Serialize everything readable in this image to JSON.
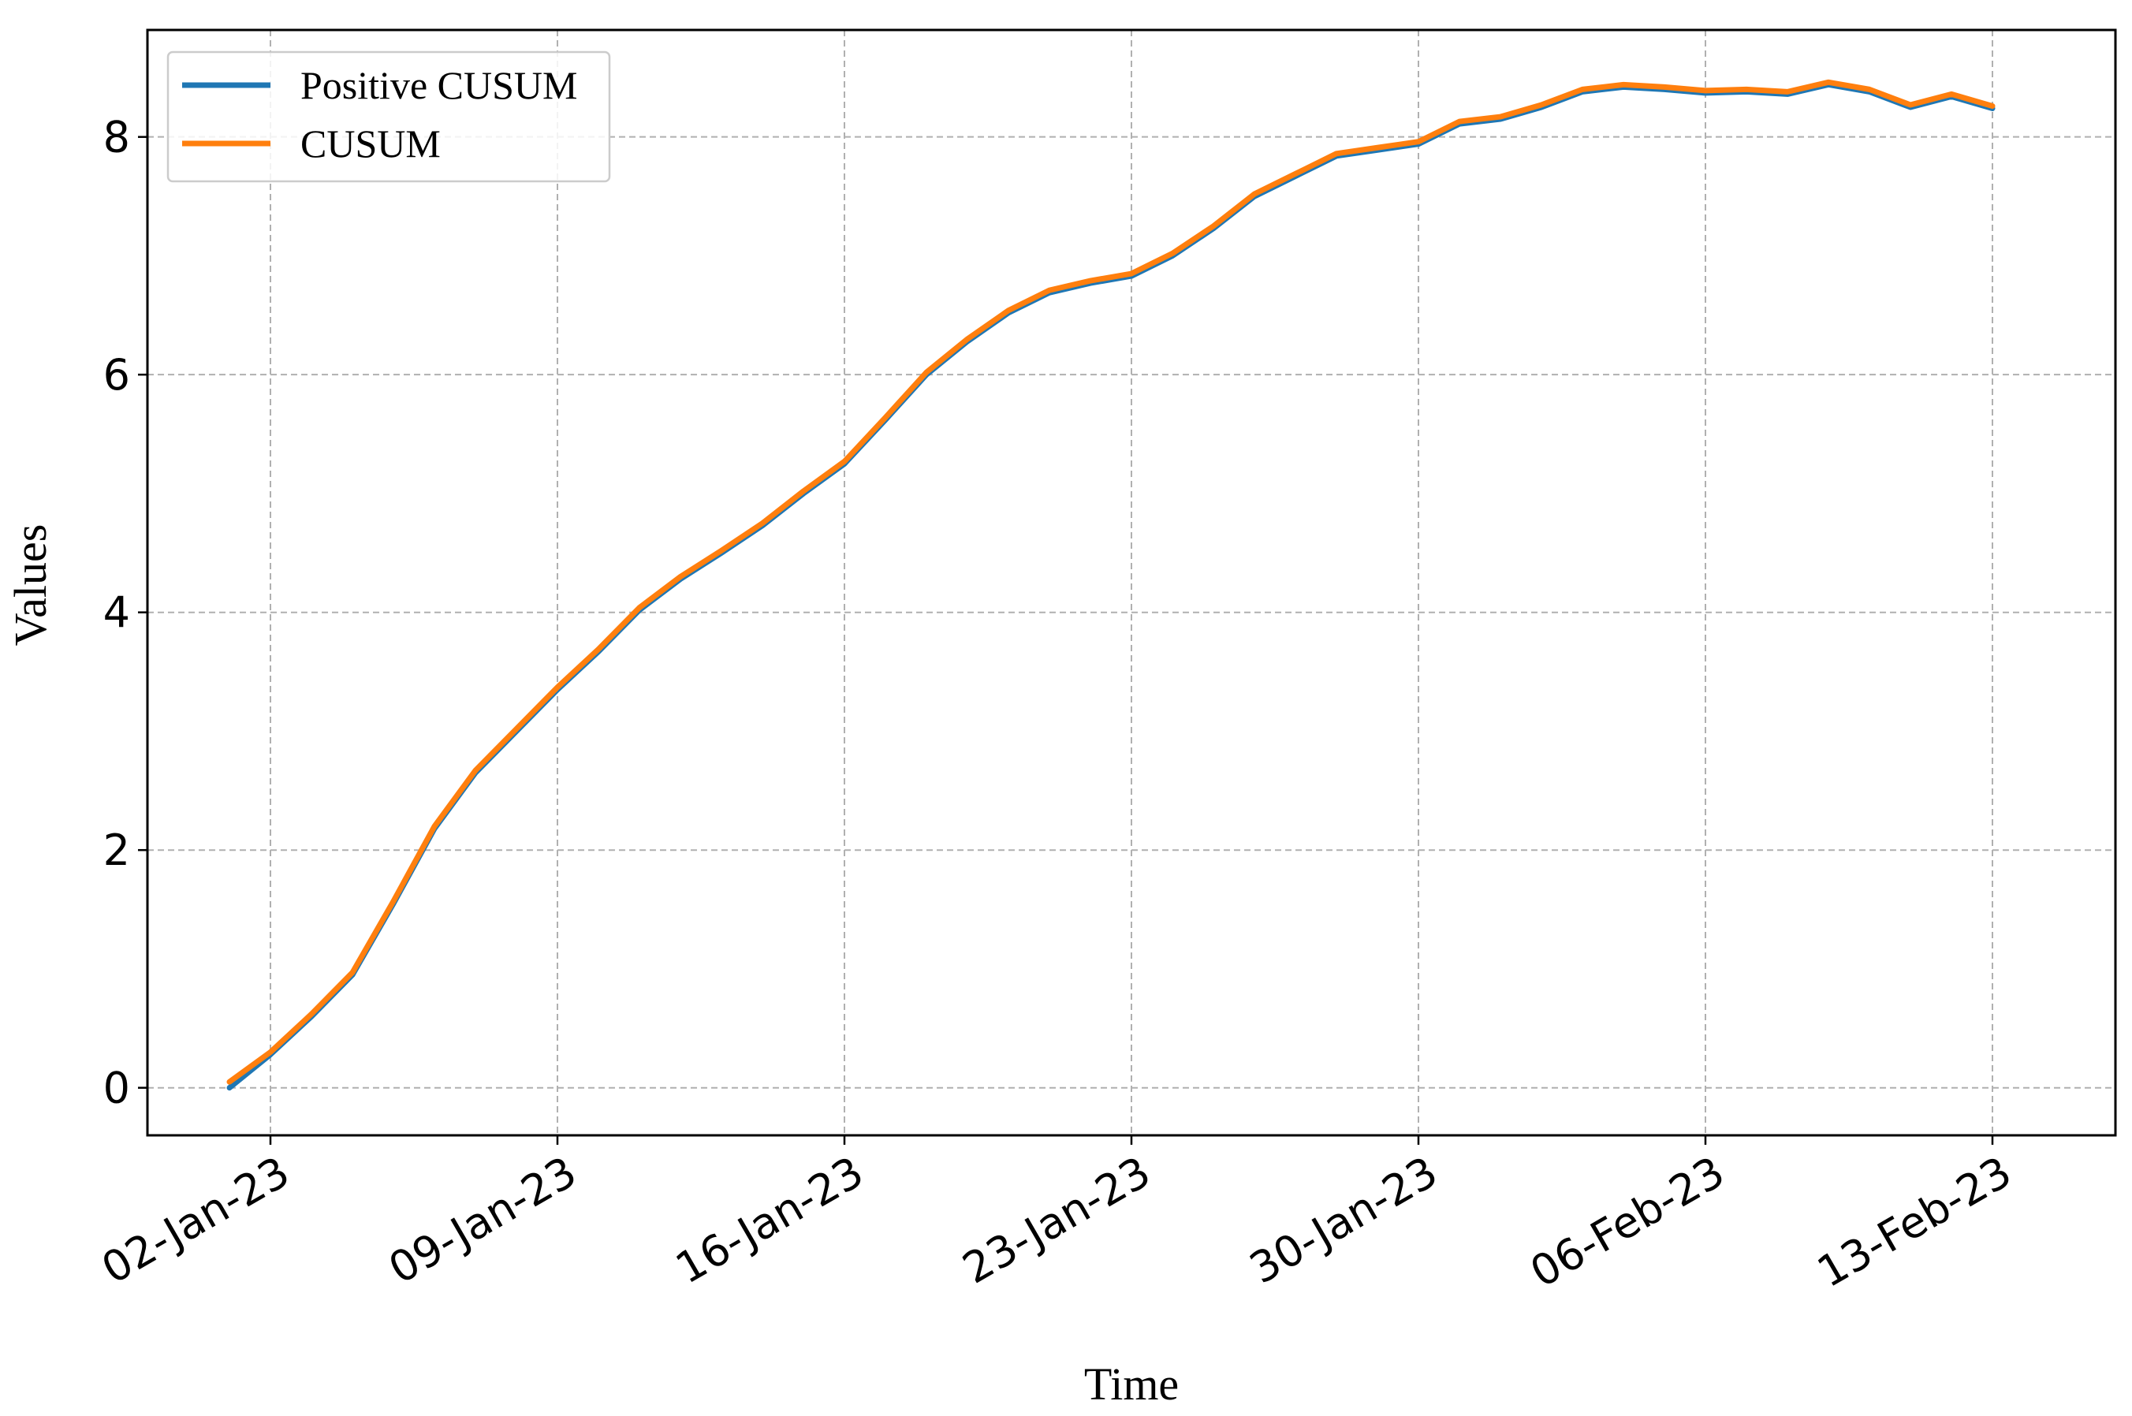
{
  "chart_data": {
    "type": "line",
    "xlabel": "Time",
    "ylabel": "Values",
    "x": [
      "2023-01-01",
      "2023-01-02",
      "2023-01-03",
      "2023-01-04",
      "2023-01-05",
      "2023-01-06",
      "2023-01-07",
      "2023-01-08",
      "2023-01-09",
      "2023-01-10",
      "2023-01-11",
      "2023-01-12",
      "2023-01-13",
      "2023-01-14",
      "2023-01-15",
      "2023-01-16",
      "2023-01-17",
      "2023-01-18",
      "2023-01-19",
      "2023-01-20",
      "2023-01-21",
      "2023-01-22",
      "2023-01-23",
      "2023-01-24",
      "2023-01-25",
      "2023-01-26",
      "2023-01-27",
      "2023-01-28",
      "2023-01-29",
      "2023-01-30",
      "2023-01-31",
      "2023-02-01",
      "2023-02-02",
      "2023-02-03",
      "2023-02-04",
      "2023-02-05",
      "2023-02-06",
      "2023-02-07",
      "2023-02-08",
      "2023-02-09",
      "2023-02-10",
      "2023-02-11",
      "2023-02-12",
      "2023-02-13"
    ],
    "series": [
      {
        "name": "Positive CUSUM",
        "color": "#1f77b4",
        "values": [
          0.0,
          0.28,
          0.6,
          0.95,
          1.55,
          2.18,
          2.65,
          3.0,
          3.35,
          3.67,
          4.02,
          4.28,
          4.5,
          4.73,
          5.0,
          5.25,
          5.62,
          6.0,
          6.28,
          6.52,
          6.69,
          6.77,
          6.83,
          7.0,
          7.23,
          7.5,
          7.67,
          7.84,
          7.89,
          7.94,
          8.11,
          8.15,
          8.25,
          8.38,
          8.42,
          8.4,
          8.37,
          8.38,
          8.36,
          8.44,
          8.38,
          8.25,
          8.34,
          8.24
        ]
      },
      {
        "name": "CUSUM",
        "color": "#ff7f0e",
        "values": [
          0.05,
          0.3,
          0.62,
          0.97,
          1.57,
          2.2,
          2.67,
          3.02,
          3.37,
          3.69,
          4.04,
          4.3,
          4.52,
          4.75,
          5.02,
          5.27,
          5.64,
          6.02,
          6.3,
          6.54,
          6.71,
          6.79,
          6.85,
          7.02,
          7.25,
          7.52,
          7.69,
          7.86,
          7.91,
          7.96,
          8.13,
          8.17,
          8.27,
          8.4,
          8.44,
          8.42,
          8.39,
          8.4,
          8.38,
          8.46,
          8.4,
          8.27,
          8.36,
          8.26
        ]
      }
    ],
    "xlim": [
      "2022-12-30",
      "2023-02-16"
    ],
    "xticks": [
      {
        "value": "2023-01-02",
        "label": "02-Jan-23"
      },
      {
        "value": "2023-01-09",
        "label": "09-Jan-23"
      },
      {
        "value": "2023-01-16",
        "label": "16-Jan-23"
      },
      {
        "value": "2023-01-23",
        "label": "23-Jan-23"
      },
      {
        "value": "2023-01-30",
        "label": "30-Jan-23"
      },
      {
        "value": "2023-02-06",
        "label": "06-Feb-23"
      },
      {
        "value": "2023-02-13",
        "label": "13-Feb-23"
      }
    ],
    "ylim": [
      -0.4,
      8.9
    ],
    "yticks": [
      0,
      2,
      4,
      6,
      8
    ],
    "grid": true,
    "legend": "upper left"
  }
}
